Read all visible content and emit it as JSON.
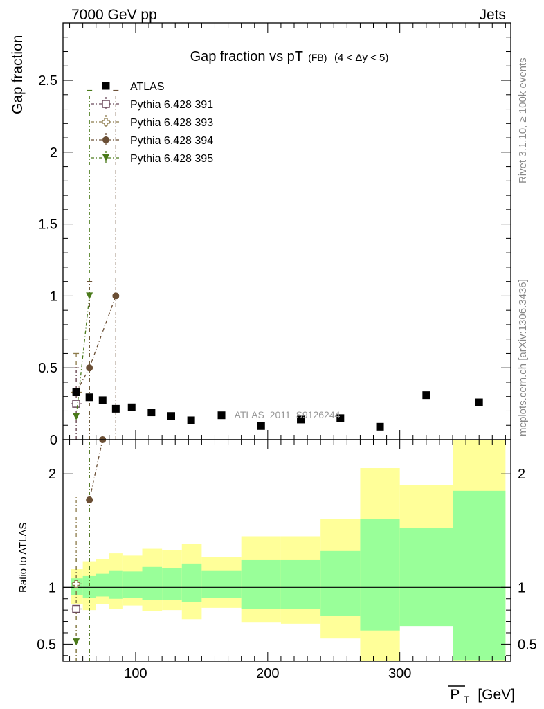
{
  "header": {
    "left": "7000 GeV pp",
    "right": "Jets"
  },
  "side_notes": {
    "rivet": "Rivet 3.1.10, ≥ 100k events",
    "mcplots": "mcplots.cern.ch [arXiv:1306.3436]"
  },
  "chart_data": [
    {
      "panel": "main",
      "type": "scatter",
      "title_main": "Gap fraction vs pT",
      "title_sub": "(FB)",
      "title_range": "(4 < Δy < 5)",
      "ylabel": "Gap fraction",
      "watermark": "ATLAS_2011_S9126244",
      "xlim": [
        45,
        384
      ],
      "ylim": [
        0,
        2.9
      ],
      "yticks": [
        "0",
        "0.5",
        "1",
        "1.5",
        "2",
        "2.5"
      ],
      "ytick_values": [
        0,
        0.5,
        1,
        1.5,
        2,
        2.5
      ],
      "legend": [
        {
          "label": "ATLAS",
          "marker": "square-filled",
          "color": "#000000"
        },
        {
          "label": "Pythia 6.428 391",
          "marker": "square-open",
          "color": "#6b4a5c"
        },
        {
          "label": "Pythia 6.428 393",
          "marker": "cross-open",
          "color": "#8c7a4a"
        },
        {
          "label": "Pythia 6.428 394",
          "marker": "circle-filled",
          "color": "#6b4f35"
        },
        {
          "label": "Pythia 6.428 395",
          "marker": "triangle-down",
          "color": "#4a7a1a"
        }
      ],
      "atlas_points": {
        "x": [
          55,
          65,
          75,
          85,
          97,
          112,
          127,
          142,
          165,
          195,
          225,
          255,
          285,
          320,
          360
        ],
        "y": [
          0.33,
          0.295,
          0.275,
          0.215,
          0.225,
          0.19,
          0.165,
          0.135,
          0.17,
          0.095,
          0.14,
          0.15,
          0.09,
          0.31,
          0.26
        ]
      },
      "mc_points": [
        {
          "name": "Pythia 6.428 391",
          "x": [
            55
          ],
          "y": [
            0.25
          ]
        },
        {
          "name": "Pythia 6.428 393",
          "x": [
            55
          ],
          "y": [
            0.33
          ]
        },
        {
          "name": "Pythia 6.428 394",
          "x": [
            55,
            65,
            85
          ],
          "y": [
            0.33,
            0.5,
            1.0
          ]
        },
        {
          "name": "Pythia 6.428 395",
          "x": [
            55,
            65
          ],
          "y": [
            0.16,
            1.0
          ]
        }
      ]
    },
    {
      "panel": "ratio",
      "type": "area",
      "ylabel": "Ratio to ATLAS",
      "xlabel": "P_T [GeV]",
      "xlabel_main": "P",
      "xlabel_sub": "T",
      "xlabel_unit": "[GeV]",
      "xlim": [
        45,
        384
      ],
      "ylim": [
        0.35,
        2.3
      ],
      "xticks": [
        "100",
        "200",
        "300"
      ],
      "xtick_values": [
        100,
        200,
        300
      ],
      "yticks": [
        "0.5",
        "1",
        "2"
      ],
      "ytick_values": [
        0.5,
        1,
        2
      ],
      "bands": {
        "edges": [
          51,
          60,
          70,
          80,
          90,
          105,
          120,
          135,
          150,
          180,
          210,
          240,
          270,
          300,
          340,
          380
        ],
        "yellow_hi": [
          1.16,
          1.23,
          1.25,
          1.3,
          1.28,
          1.34,
          1.33,
          1.38,
          1.27,
          1.45,
          1.45,
          1.6,
          2.05,
          1.9,
          2.3
        ],
        "yellow_lo": [
          0.85,
          0.8,
          0.85,
          0.81,
          0.84,
          0.79,
          0.8,
          0.72,
          0.82,
          0.69,
          0.68,
          0.55,
          0.33,
          0.67,
          0.33
        ],
        "green_hi": [
          1.08,
          1.1,
          1.12,
          1.15,
          1.14,
          1.18,
          1.17,
          1.21,
          1.15,
          1.24,
          1.24,
          1.32,
          1.6,
          1.52,
          1.85
        ],
        "green_lo": [
          0.93,
          0.91,
          0.92,
          0.9,
          0.91,
          0.89,
          0.89,
          0.87,
          0.91,
          0.81,
          0.81,
          0.75,
          0.62,
          0.66,
          0.36
        ]
      },
      "mc_points": [
        {
          "name": "Pythia 6.428 391",
          "x": [
            55
          ],
          "y": [
            0.81
          ]
        },
        {
          "name": "Pythia 6.428 393",
          "x": [
            55
          ],
          "y": [
            1.03
          ]
        },
        {
          "name": "Pythia 6.428 394",
          "x": [
            65,
            75
          ],
          "y": [
            1.77,
            2.3
          ]
        },
        {
          "name": "Pythia 6.428 395",
          "x": [
            55
          ],
          "y": [
            0.52
          ]
        }
      ]
    }
  ]
}
